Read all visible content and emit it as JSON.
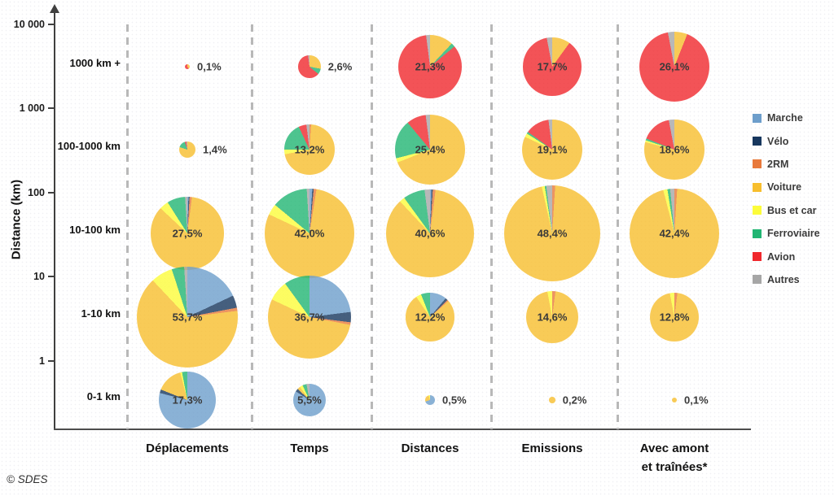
{
  "source": "© SDES",
  "axis": {
    "label": "Distance (km)",
    "ticks": [
      "10 000",
      "1 000",
      "100",
      "10",
      "1"
    ]
  },
  "legend": {
    "items": [
      {
        "label": "Marche",
        "color": "#6D9ECB"
      },
      {
        "label": "Vélo",
        "color": "#17375E"
      },
      {
        "label": "2RM",
        "color": "#E8793B"
      },
      {
        "label": "Voiture",
        "color": "#F7BE2D"
      },
      {
        "label": "Bus et car",
        "color": "#FCFC3A"
      },
      {
        "label": "Ferroviaire",
        "color": "#21B573"
      },
      {
        "label": "Avion",
        "color": "#F0282D"
      },
      {
        "label": "Autres",
        "color": "#A6A6A6"
      }
    ]
  },
  "chart_data": {
    "type": "pie",
    "modes": [
      "Marche",
      "Vélo",
      "2RM",
      "Voiture",
      "Bus et car",
      "Ferroviaire",
      "Avion",
      "Autres"
    ],
    "row_bands": [
      "1000 km +",
      "100-1000 km",
      "10-100 km",
      "1-10 km",
      "0-1 km"
    ],
    "ylabel": "Distance (km)",
    "y_ticks": [
      "10 000",
      "1 000",
      "100",
      "10",
      "1"
    ],
    "legend_position": "right",
    "columns": [
      {
        "label": "Déplacements",
        "pies": [
          {
            "band": "1000 km +",
            "value": 0.1,
            "value_label": "0,1%",
            "shares": [
              0,
              0,
              0,
              40,
              0,
              0,
              60,
              0
            ]
          },
          {
            "band": "100-1000 km",
            "value": 1.4,
            "value_label": "1,4%",
            "shares": [
              0,
              0,
              0,
              80,
              0,
              15,
              3,
              2
            ]
          },
          {
            "band": "10-100 km",
            "value": 27.5,
            "value_label": "27,5%",
            "shares": [
              0.5,
              0.5,
              1,
              85,
              4,
              8,
              0,
              1
            ]
          },
          {
            "band": "1-10 km",
            "value": 53.7,
            "value_label": "53,7%",
            "shares": [
              18,
              4,
              1,
              65,
              7,
              4,
              0,
              1
            ]
          },
          {
            "band": "0-1 km",
            "value": 17.3,
            "value_label": "17,3%",
            "shares": [
              79,
              2,
              0,
              15,
              1,
              3,
              0,
              0
            ]
          }
        ]
      },
      {
        "label": "Temps",
        "pies": [
          {
            "band": "1000 km +",
            "value": 2.6,
            "value_label": "2,6%",
            "shares": [
              0,
              0,
              0,
              28,
              0,
              8,
              62,
              2
            ]
          },
          {
            "band": "100-1000 km",
            "value": 13.2,
            "value_label": "13,2%",
            "shares": [
              0,
              0,
              1,
              71,
              3,
              18,
              5,
              2
            ]
          },
          {
            "band": "10-100 km",
            "value": 42.0,
            "value_label": "42,0%",
            "shares": [
              1,
              0.5,
              1,
              79.5,
              4,
              13,
              0,
              1
            ]
          },
          {
            "band": "1-10 km",
            "value": 36.7,
            "value_label": "36,7%",
            "shares": [
              23,
              4,
              1,
              54,
              8,
              10,
              0,
              0
            ]
          },
          {
            "band": "0-1 km",
            "value": 5.5,
            "value_label": "5,5%",
            "shares": [
              84,
              3,
              0,
              3,
              3,
              4,
              0,
              3
            ]
          }
        ]
      },
      {
        "label": "Distances",
        "pies": [
          {
            "band": "1000 km +",
            "value": 21.3,
            "value_label": "21,3%",
            "shares": [
              0,
              0,
              0,
              12,
              0,
              2,
              84,
              2
            ]
          },
          {
            "band": "100-1000 km",
            "value": 25.4,
            "value_label": "25,4%",
            "shares": [
              0,
              0,
              0,
              69,
              2,
              18,
              9,
              2
            ]
          },
          {
            "band": "10-100 km",
            "value": 40.6,
            "value_label": "40,6%",
            "shares": [
              0.5,
              0.5,
              1,
              86,
              2,
              8,
              0,
              2
            ]
          },
          {
            "band": "1-10 km",
            "value": 12.2,
            "value_label": "12,2%",
            "shares": [
              11,
              1.5,
              1,
              77,
              3.5,
              6,
              0,
              0
            ]
          },
          {
            "band": "0-1 km",
            "value": 0.5,
            "value_label": "0,5%",
            "shares": [
              70,
              0,
              0,
              25,
              5,
              0,
              0,
              0
            ]
          }
        ]
      },
      {
        "label": "Emissions",
        "pies": [
          {
            "band": "1000 km +",
            "value": 17.7,
            "value_label": "17,7%",
            "shares": [
              0,
              0,
              0,
              10,
              0,
              0,
              87,
              3
            ]
          },
          {
            "band": "100-1000 km",
            "value": 19.1,
            "value_label": "19,1%",
            "shares": [
              0,
              0,
              0,
              82,
              2,
              1,
              13,
              2
            ]
          },
          {
            "band": "10-100 km",
            "value": 48.4,
            "value_label": "48,4%",
            "shares": [
              0,
              0,
              1,
              95.5,
              1,
              0.5,
              0,
              2
            ]
          },
          {
            "band": "1-10 km",
            "value": 14.6,
            "value_label": "14,6%",
            "shares": [
              0,
              0,
              2,
              95,
              3,
              0,
              0,
              0
            ]
          },
          {
            "band": "0-1 km",
            "value": 0.2,
            "value_label": "0,2%",
            "shares": [
              0,
              0,
              0,
              100,
              0,
              0,
              0,
              0
            ]
          }
        ]
      },
      {
        "label": "Avec amont\net traînées*",
        "pies": [
          {
            "band": "1000 km +",
            "value": 26.1,
            "value_label": "26,1%",
            "shares": [
              0,
              0,
              0,
              6,
              0,
              0,
              91,
              3
            ]
          },
          {
            "band": "100-1000 km",
            "value": 18.6,
            "value_label": "18,6%",
            "shares": [
              0,
              0,
              0,
              79,
              1,
              1,
              16,
              3
            ]
          },
          {
            "band": "10-100 km",
            "value": 42.4,
            "value_label": "42,4%",
            "shares": [
              0,
              0,
              1,
              95,
              1.5,
              1,
              0,
              1.5
            ]
          },
          {
            "band": "1-10 km",
            "value": 12.8,
            "value_label": "12,8%",
            "shares": [
              0,
              0,
              2,
              95,
              3,
              0,
              0,
              0
            ]
          },
          {
            "band": "0-1 km",
            "value": 0.1,
            "value_label": "0,1%",
            "shares": [
              0,
              0,
              0,
              100,
              0,
              0,
              0,
              0
            ]
          }
        ]
      }
    ]
  }
}
